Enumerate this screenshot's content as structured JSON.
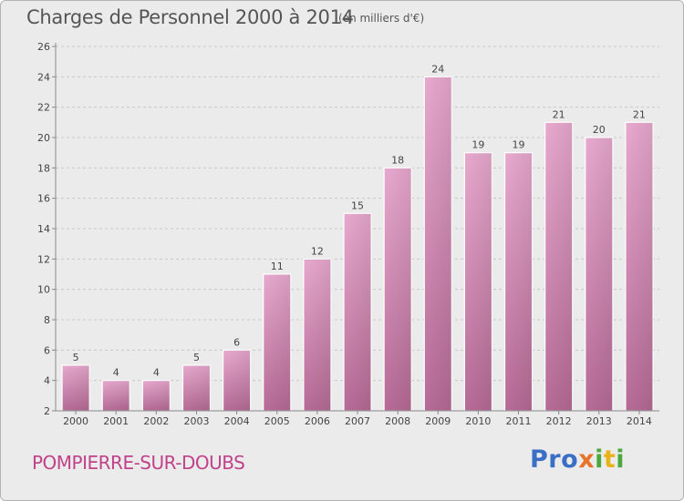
{
  "title": "Charges de Personnel 2000 à 2014",
  "subtitle": "(en milliers d'€)",
  "town": "POMPIERRE-SUR-DOUBS",
  "logo": {
    "letters": [
      "P",
      "r",
      "o",
      "x",
      "i",
      "t",
      "i"
    ],
    "colors": [
      "#3b6fc5",
      "#3b6fc5",
      "#3b6fc5",
      "#e8732a",
      "#4aa83c",
      "#e8b31a",
      "#4aa83c"
    ]
  },
  "chart_data": {
    "type": "bar",
    "categories": [
      "2000",
      "2001",
      "2002",
      "2003",
      "2004",
      "2005",
      "2006",
      "2007",
      "2008",
      "2009",
      "2010",
      "2011",
      "2012",
      "2013",
      "2014"
    ],
    "values": [
      5,
      4,
      4,
      5,
      6,
      11,
      12,
      15,
      18,
      24,
      19,
      19,
      21,
      20,
      21
    ],
    "data_labels": [
      "5",
      "4",
      "4",
      "5",
      "6",
      "11",
      "12",
      "15",
      "18",
      "24",
      "19",
      "19",
      "21",
      "20",
      "21"
    ],
    "ylim": [
      2,
      26
    ],
    "yticks": [
      2,
      4,
      6,
      8,
      10,
      12,
      14,
      16,
      18,
      20,
      22,
      24,
      26
    ],
    "grid": true,
    "bar_color": "#d99abf"
  }
}
